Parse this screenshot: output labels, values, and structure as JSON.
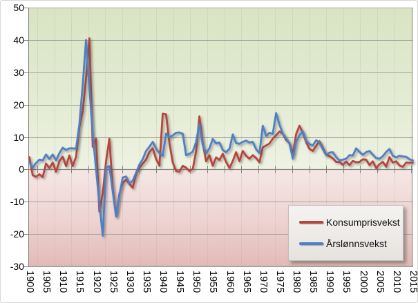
{
  "chart_data": {
    "type": "line",
    "title": "",
    "x_start": 1900,
    "x_end": 2015,
    "x_step": 1,
    "xticks": [
      1900,
      1905,
      1910,
      1915,
      1920,
      1925,
      1930,
      1935,
      1940,
      1945,
      1950,
      1955,
      1960,
      1965,
      1970,
      1975,
      1980,
      1985,
      1990,
      1995,
      2000,
      2005,
      2010,
      2015
    ],
    "yticks": [
      50,
      40,
      30,
      20,
      10,
      0,
      -10,
      -20,
      -30
    ],
    "ylim": [
      -30,
      50
    ],
    "grid": {
      "horizontal": "solid-gray-every-10",
      "vertical": "dotted-every-5-years"
    },
    "legend_position": "overlay-bottom-right",
    "colors": {
      "bg_positive_top": "#d9e4c3",
      "bg_positive_bottom": "#eef2e3",
      "bg_negative_top": "#f5e7e5",
      "bg_negative_bottom": "#e2bab8",
      "gridline": "#a2a29a",
      "zero_axis": "#82827a"
    },
    "series": [
      {
        "name": "Konsumprisvekst",
        "color": "#b6443e",
        "values": [
          3.8,
          -1.8,
          -2.3,
          -1.5,
          -2.4,
          1.8,
          0.4,
          2.1,
          -0.7,
          2.5,
          3.9,
          1.0,
          4.3,
          1.0,
          3.9,
          13,
          18,
          28,
          40.5,
          7,
          9.5,
          -13,
          -7.5,
          2.5,
          9.5,
          -6,
          -14.5,
          -7.5,
          -4.2,
          -3.2,
          -4.5,
          -5.7,
          -1.5,
          0.5,
          1.8,
          3.0,
          5.3,
          6.5,
          3.2,
          1.1,
          17.2,
          17.0,
          8.1,
          2.1,
          -0.5,
          -0.7,
          1.1,
          0.5,
          -0.5,
          0.1,
          5.5,
          16.4,
          8.0,
          2.5,
          4.4,
          1.1,
          3.7,
          2.9,
          4.8,
          2.3,
          0.4,
          2.6,
          5.3,
          2.5,
          5.7,
          4.2,
          3.3,
          4.4,
          3.5,
          2.2,
          6.8,
          7.4,
          8.0,
          9.5,
          10.5,
          11.7,
          11.0,
          9.1,
          8.1,
          4.8,
          10.9,
          13.5,
          11.3,
          8.4,
          6.3,
          5.7,
          7.2,
          8.7,
          6.7,
          4.6,
          4.1,
          3.4,
          2.3,
          2.3,
          1.4,
          2.4,
          1.3,
          2.6,
          2.2,
          2.3,
          3.1,
          3.0,
          1.3,
          2.5,
          0.4,
          1.6,
          2.3,
          0.8,
          3.8,
          2.1,
          2.5,
          1.2,
          0.8,
          2.1,
          2.0,
          2.1
        ]
      },
      {
        "name": "Årslønnsvekst",
        "color": "#4e80c4",
        "values": [
          2.2,
          0.5,
          2.0,
          3.0,
          2.8,
          4.6,
          3.2,
          4.6,
          2.8,
          5.0,
          6.7,
          6.0,
          6.5,
          6.5,
          6.4,
          14,
          26,
          40,
          25,
          11,
          0,
          -10.5,
          -20.5,
          0.5,
          1.0,
          -7,
          -14.5,
          -8,
          -2.5,
          -2.2,
          -4.3,
          -3.5,
          -1.0,
          1.5,
          3.2,
          5.7,
          7.0,
          8.5,
          6.4,
          5.0,
          4.2,
          11.1,
          9.9,
          10.5,
          11.3,
          11.4,
          11.0,
          4.4,
          4.8,
          5.5,
          8.5,
          14.0,
          7.4,
          5.0,
          6.5,
          9.4,
          8.0,
          8.3,
          6.0,
          5.3,
          6.4,
          10.8,
          8.1,
          7.9,
          8.5,
          8.9,
          8.3,
          8.5,
          6.2,
          5.0,
          13.5,
          10.3,
          11.3,
          11.0,
          17.4,
          13.8,
          11.0,
          9.6,
          8.0,
          3.3,
          8.5,
          10.5,
          11.8,
          8.8,
          7.8,
          7.4,
          9.0,
          8.3,
          6.2,
          4.4,
          5.2,
          5.3,
          3.8,
          2.8,
          3.0,
          3.3,
          4.4,
          4.3,
          6.5,
          5.4,
          4.5,
          5.3,
          5.7,
          4.5,
          3.5,
          3.3,
          4.1,
          5.4,
          6.3,
          4.2,
          3.7,
          4.2,
          4.0,
          3.9,
          3.1,
          2.8
        ]
      }
    ]
  },
  "legend": {
    "items": [
      {
        "label": "Konsumprisvekst"
      },
      {
        "label": "Årslønnsvekst"
      }
    ]
  }
}
